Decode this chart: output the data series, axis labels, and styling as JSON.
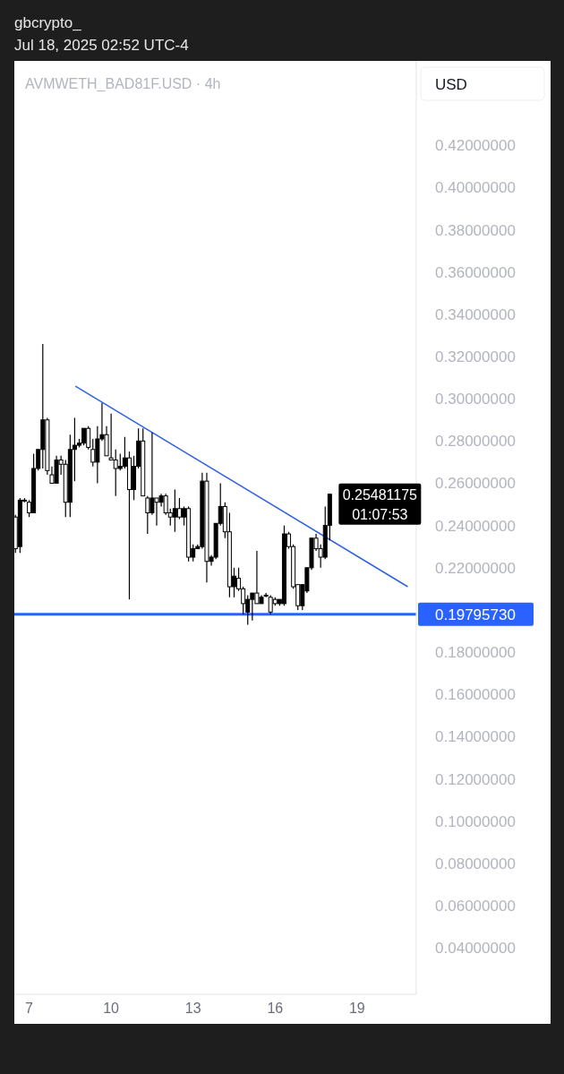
{
  "chart_data": {
    "type": "candlestick",
    "title": "gbcrypto_",
    "subtitle": "Jul 18, 2025 02:52 UTC-4",
    "ylabel": "USD",
    "annotations": [
      "AVMWETH_BAD81F.USD · 4h",
      {
        "text": "0.25481175",
        "x": "2025-07-18T00:00",
        "y": 0.25481175
      },
      "01:07:53"
    ],
    "x": [
      "2025-07-06T12:00",
      "2025-07-06T16:00",
      "2025-07-06T20:00",
      "2025-07-07T00:00",
      "2025-07-07T04:00",
      "2025-07-07T08:00",
      "2025-07-07T12:00",
      "2025-07-07T16:00",
      "2025-07-07T20:00",
      "2025-07-08T00:00",
      "2025-07-08T04:00",
      "2025-07-08T08:00",
      "2025-07-08T12:00",
      "2025-07-08T16:00",
      "2025-07-08T20:00",
      "2025-07-09T00:00",
      "2025-07-09T04:00",
      "2025-07-09T08:00",
      "2025-07-09T12:00",
      "2025-07-09T16:00",
      "2025-07-09T20:00",
      "2025-07-10T00:00",
      "2025-07-10T04:00",
      "2025-07-10T08:00",
      "2025-07-10T12:00",
      "2025-07-10T16:00",
      "2025-07-10T20:00",
      "2025-07-11T00:00",
      "2025-07-11T04:00",
      "2025-07-11T08:00",
      "2025-07-11T12:00",
      "2025-07-11T16:00",
      "2025-07-11T20:00",
      "2025-07-12T00:00",
      "2025-07-12T04:00",
      "2025-07-12T08:00",
      "2025-07-12T12:00",
      "2025-07-12T16:00",
      "2025-07-12T20:00",
      "2025-07-13T00:00",
      "2025-07-13T04:00",
      "2025-07-13T08:00",
      "2025-07-13T12:00",
      "2025-07-13T16:00",
      "2025-07-13T20:00",
      "2025-07-14T00:00",
      "2025-07-14T04:00",
      "2025-07-14T08:00",
      "2025-07-14T12:00",
      "2025-07-14T16:00",
      "2025-07-14T20:00",
      "2025-07-15T00:00",
      "2025-07-15T04:00",
      "2025-07-15T08:00",
      "2025-07-15T12:00",
      "2025-07-15T16:00",
      "2025-07-15T20:00",
      "2025-07-16T00:00",
      "2025-07-16T04:00",
      "2025-07-16T08:00",
      "2025-07-16T12:00",
      "2025-07-16T16:00",
      "2025-07-16T20:00",
      "2025-07-17T00:00",
      "2025-07-17T04:00",
      "2025-07-17T08:00",
      "2025-07-17T12:00",
      "2025-07-17T16:00",
      "2025-07-17T20:00",
      "2025-07-18T00:00"
    ],
    "ohlc": [
      [
        0.244,
        0.245,
        0.227,
        0.229
      ],
      [
        0.23,
        0.253,
        0.227,
        0.252
      ],
      [
        0.252,
        0.253,
        0.251,
        0.252
      ],
      [
        0.251,
        0.252,
        0.244,
        0.246
      ],
      [
        0.246,
        0.274,
        0.246,
        0.267
      ],
      [
        0.267,
        0.276,
        0.266,
        0.276
      ],
      [
        0.276,
        0.326,
        0.267,
        0.29
      ],
      [
        0.29,
        0.291,
        0.264,
        0.266
      ],
      [
        0.264,
        0.268,
        0.26,
        0.26
      ],
      [
        0.26,
        0.273,
        0.26,
        0.271
      ],
      [
        0.271,
        0.273,
        0.264,
        0.269
      ],
      [
        0.269,
        0.271,
        0.244,
        0.251
      ],
      [
        0.251,
        0.283,
        0.244,
        0.276
      ],
      [
        0.276,
        0.291,
        0.261,
        0.278
      ],
      [
        0.278,
        0.281,
        0.277,
        0.279
      ],
      [
        0.279,
        0.286,
        0.278,
        0.286
      ],
      [
        0.286,
        0.287,
        0.276,
        0.277
      ],
      [
        0.276,
        0.281,
        0.268,
        0.27
      ],
      [
        0.27,
        0.287,
        0.26,
        0.281
      ],
      [
        0.281,
        0.298,
        0.28,
        0.283
      ],
      [
        0.283,
        0.287,
        0.273,
        0.273
      ],
      [
        0.272,
        0.293,
        0.271,
        0.271
      ],
      [
        0.271,
        0.276,
        0.254,
        0.267
      ],
      [
        0.267,
        0.274,
        0.266,
        0.268
      ],
      [
        0.268,
        0.282,
        0.267,
        0.272
      ],
      [
        0.272,
        0.275,
        0.205,
        0.257
      ],
      [
        0.257,
        0.273,
        0.252,
        0.268
      ],
      [
        0.268,
        0.286,
        0.267,
        0.28
      ],
      [
        0.28,
        0.286,
        0.254,
        0.254
      ],
      [
        0.253,
        0.254,
        0.236,
        0.246
      ],
      [
        0.246,
        0.284,
        0.245,
        0.253
      ],
      [
        0.253,
        0.253,
        0.24,
        0.251
      ],
      [
        0.251,
        0.255,
        0.249,
        0.254
      ],
      [
        0.254,
        0.255,
        0.245,
        0.246
      ],
      [
        0.246,
        0.248,
        0.24,
        0.244
      ],
      [
        0.244,
        0.257,
        0.237,
        0.248
      ],
      [
        0.248,
        0.253,
        0.243,
        0.244
      ],
      [
        0.244,
        0.249,
        0.24,
        0.248
      ],
      [
        0.248,
        0.249,
        0.223,
        0.225
      ],
      [
        0.225,
        0.231,
        0.223,
        0.229
      ],
      [
        0.229,
        0.231,
        0.229,
        0.23
      ],
      [
        0.23,
        0.265,
        0.229,
        0.261
      ],
      [
        0.261,
        0.265,
        0.213,
        0.223
      ],
      [
        0.223,
        0.226,
        0.221,
        0.225
      ],
      [
        0.225,
        0.241,
        0.224,
        0.241
      ],
      [
        0.241,
        0.26,
        0.24,
        0.249
      ],
      [
        0.249,
        0.251,
        0.234,
        0.237
      ],
      [
        0.237,
        0.246,
        0.206,
        0.211
      ],
      [
        0.211,
        0.22,
        0.206,
        0.216
      ],
      [
        0.215,
        0.22,
        0.209,
        0.21
      ],
      [
        0.21,
        0.211,
        0.198,
        0.203
      ],
      [
        0.199,
        0.207,
        0.193,
        0.205
      ],
      [
        0.205,
        0.208,
        0.195,
        0.208
      ],
      [
        0.208,
        0.228,
        0.203,
        0.203
      ],
      [
        0.203,
        0.207,
        0.203,
        0.206
      ],
      [
        0.207,
        0.208,
        0.206,
        0.207
      ],
      [
        0.206,
        0.207,
        0.198,
        0.199
      ],
      [
        0.205,
        0.206,
        0.202,
        0.203
      ],
      [
        0.203,
        0.205,
        0.202,
        0.205
      ],
      [
        0.203,
        0.24,
        0.202,
        0.236
      ],
      [
        0.236,
        0.237,
        0.229,
        0.23
      ],
      [
        0.23,
        0.231,
        0.21,
        0.211
      ],
      [
        0.212,
        0.212,
        0.2,
        0.202
      ],
      [
        0.202,
        0.212,
        0.2,
        0.212
      ],
      [
        0.209,
        0.22,
        0.208,
        0.22
      ],
      [
        0.22,
        0.234,
        0.219,
        0.234
      ],
      [
        0.234,
        0.236,
        0.228,
        0.229
      ],
      [
        0.229,
        0.231,
        0.22,
        0.225
      ],
      [
        0.225,
        0.249,
        0.224,
        0.24
      ],
      [
        0.24,
        0.255,
        0.233,
        0.25481175
      ]
    ],
    "series": [
      {
        "type": "line",
        "color": "#2f62e0",
        "x": [
          "2025-07-08T16:40",
          "2025-07-20T20:30"
        ],
        "values": [
          0.306,
          0.211
        ]
      }
    ],
    "ref_lines": [
      {
        "axis": "y",
        "value": 0.1979573,
        "label": "0.19795730",
        "color": "#2962ff"
      }
    ],
    "xlim": [
      "2025-07-06T11:00",
      "2025-07-21T04:00"
    ],
    "xticks": [
      {
        "value": "2025-07-07",
        "label": "7"
      },
      {
        "value": "2025-07-10",
        "label": "10"
      },
      {
        "value": "2025-07-13",
        "label": "13"
      },
      {
        "value": "2025-07-16",
        "label": "16"
      },
      {
        "value": "2025-07-19",
        "label": "19"
      }
    ],
    "ylim": [
      0.018,
      0.46
    ],
    "yticks": [
      {
        "value": 0.04,
        "label": "0.04000000"
      },
      {
        "value": 0.06,
        "label": "0.06000000"
      },
      {
        "value": 0.08,
        "label": "0.08000000"
      },
      {
        "value": 0.1,
        "label": "0.10000000"
      },
      {
        "value": 0.12,
        "label": "0.12000000"
      },
      {
        "value": 0.14,
        "label": "0.14000000"
      },
      {
        "value": 0.16,
        "label": "0.16000000"
      },
      {
        "value": 0.18,
        "label": "0.18000000"
      },
      {
        "value": 0.22,
        "label": "0.22000000"
      },
      {
        "value": 0.24,
        "label": "0.24000000"
      },
      {
        "value": 0.26,
        "label": "0.26000000"
      },
      {
        "value": 0.28,
        "label": "0.28000000"
      },
      {
        "value": 0.3,
        "label": "0.30000000"
      },
      {
        "value": 0.32,
        "label": "0.32000000"
      },
      {
        "value": 0.34,
        "label": "0.34000000"
      },
      {
        "value": 0.36,
        "label": "0.36000000"
      },
      {
        "value": 0.38,
        "label": "0.38000000"
      },
      {
        "value": 0.4,
        "label": "0.40000000"
      },
      {
        "value": 0.42,
        "label": "0.42000000"
      }
    ]
  }
}
